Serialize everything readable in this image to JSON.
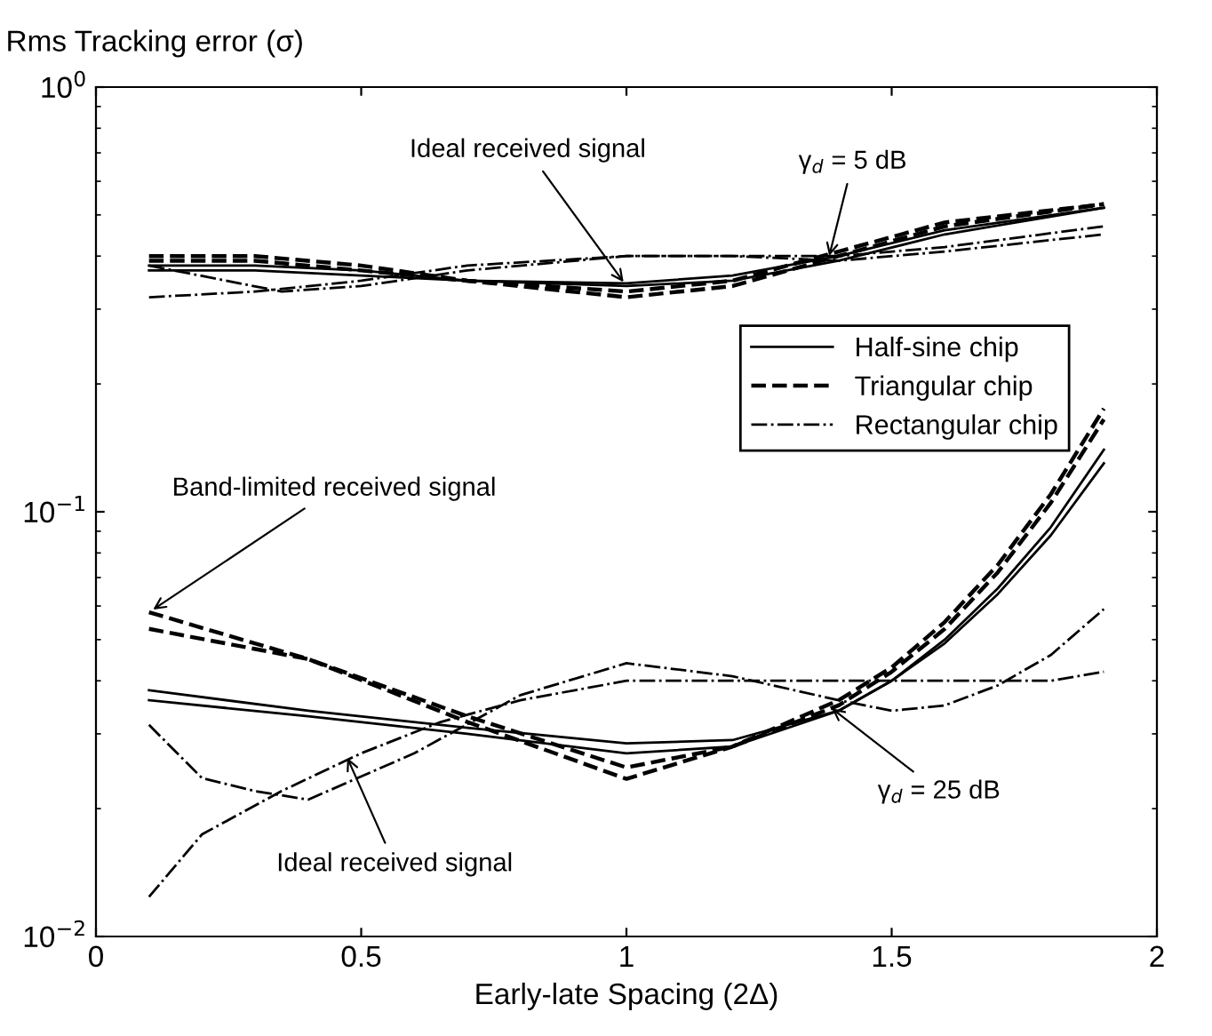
{
  "chart_data": {
    "type": "line",
    "xlabel": "Early-late Spacing (2Δ)",
    "ylabel": "Rms Tracking error (σ)",
    "xlim": [
      0,
      2
    ],
    "xticks": [
      0,
      0.5,
      1,
      1.5,
      2
    ],
    "ylim": [
      0.01,
      1
    ],
    "yticks": [
      {
        "value": 0.01,
        "label": "10$^{−2}$"
      },
      {
        "value": 0.1,
        "label": "10$^{−1}$"
      },
      {
        "value": 1,
        "label": "10$^{0}$"
      }
    ],
    "log": "y",
    "grid": false,
    "legend": "right",
    "marker": "none",
    "series": [
      {
        "name": "Half-sine chip",
        "color": "#000000",
        "line_style": "solid",
        "x": [
          0.1,
          0.3,
          0.5,
          0.7,
          1.0,
          1.2,
          1.4,
          1.6,
          1.9
        ],
        "values": [
          0.37,
          0.37,
          0.36,
          0.35,
          0.34,
          0.35,
          0.39,
          0.45,
          0.52
        ]
      },
      {
        "color": "#000000",
        "line_style": "solid",
        "x": [
          0.1,
          0.3,
          0.5,
          0.7,
          1.0,
          1.2,
          1.4,
          1.6,
          1.9
        ],
        "values": [
          0.38,
          0.38,
          0.37,
          0.35,
          0.345,
          0.36,
          0.4,
          0.46,
          0.52
        ]
      },
      {
        "name": "Triangular chip",
        "color": "#000000",
        "line_style": "dashed",
        "x": [
          0.1,
          0.3,
          0.5,
          0.7,
          1.0,
          1.2,
          1.4,
          1.6,
          1.9
        ],
        "values": [
          0.4,
          0.4,
          0.38,
          0.35,
          0.32,
          0.34,
          0.4,
          0.47,
          0.53
        ]
      },
      {
        "color": "#000000",
        "line_style": "dashed",
        "x": [
          0.1,
          0.3,
          0.5,
          0.7,
          1.0,
          1.2,
          1.4,
          1.6,
          1.9
        ],
        "values": [
          0.39,
          0.39,
          0.37,
          0.35,
          0.33,
          0.35,
          0.41,
          0.48,
          0.53
        ]
      },
      {
        "name": "Rectangular chip",
        "color": "#000000",
        "line_style": "dashdot",
        "x": [
          0.1,
          0.3,
          0.5,
          0.7,
          1.0,
          1.2,
          1.4,
          1.6,
          1.9
        ],
        "values": [
          0.32,
          0.33,
          0.35,
          0.38,
          0.4,
          0.4,
          0.4,
          0.42,
          0.47
        ]
      },
      {
        "color": "#000000",
        "line_style": "dashdot",
        "x": [
          0.1,
          0.35,
          0.5,
          0.7,
          1.0,
          1.2,
          1.4,
          1.6,
          1.9
        ],
        "values": [
          0.38,
          0.33,
          0.34,
          0.37,
          0.4,
          0.4,
          0.39,
          0.41,
          0.45
        ]
      },
      {
        "color": "#000000",
        "line_style": "dashed",
        "x": [
          0.1,
          0.4,
          0.7,
          1.0,
          1.2,
          1.4,
          1.5,
          1.6,
          1.7,
          1.8,
          1.9
        ],
        "values": [
          0.058,
          0.045,
          0.032,
          0.0235,
          0.028,
          0.036,
          0.043,
          0.055,
          0.075,
          0.11,
          0.175
        ]
      },
      {
        "color": "#000000",
        "line_style": "dashed",
        "x": [
          0.1,
          0.4,
          0.7,
          1.0,
          1.2,
          1.4,
          1.5,
          1.6,
          1.7,
          1.8,
          1.9
        ],
        "values": [
          0.053,
          0.045,
          0.033,
          0.025,
          0.028,
          0.035,
          0.042,
          0.053,
          0.072,
          0.105,
          0.165
        ]
      },
      {
        "color": "#000000",
        "line_style": "solid",
        "x": [
          0.1,
          0.4,
          0.7,
          1.0,
          1.2,
          1.4,
          1.5,
          1.6,
          1.7,
          1.8,
          1.9
        ],
        "values": [
          0.038,
          0.034,
          0.031,
          0.0285,
          0.029,
          0.034,
          0.04,
          0.05,
          0.066,
          0.092,
          0.14
        ]
      },
      {
        "color": "#000000",
        "line_style": "solid",
        "x": [
          0.1,
          0.4,
          0.7,
          1.0,
          1.2,
          1.4,
          1.5,
          1.6,
          1.7,
          1.8,
          1.9
        ],
        "values": [
          0.036,
          0.033,
          0.03,
          0.027,
          0.028,
          0.034,
          0.04,
          0.049,
          0.064,
          0.088,
          0.13
        ]
      },
      {
        "color": "#000000",
        "line_style": "dashdot",
        "x": [
          0.1,
          0.2,
          0.35,
          0.5,
          0.65,
          0.8,
          1.0,
          1.2,
          1.4,
          1.6,
          1.8,
          1.9
        ],
        "values": [
          0.0124,
          0.0174,
          0.022,
          0.027,
          0.032,
          0.036,
          0.04,
          0.04,
          0.04,
          0.04,
          0.04,
          0.042
        ]
      },
      {
        "color": "#000000",
        "line_style": "dashdot",
        "x": [
          0.1,
          0.2,
          0.3,
          0.4,
          0.6,
          0.8,
          1.0,
          1.2,
          1.4,
          1.5,
          1.6,
          1.7,
          1.8,
          1.9
        ],
        "values": [
          0.0315,
          0.0236,
          0.022,
          0.021,
          0.027,
          0.037,
          0.044,
          0.041,
          0.036,
          0.034,
          0.035,
          0.039,
          0.046,
          0.059
        ]
      }
    ],
    "annotations": [
      {
        "text": "Ideal received signal",
        "x": 1.0,
        "y": 0.34
      },
      {
        "text": "γ$_{d}$ = 5 dB",
        "x": 1.38,
        "y": 0.39
      },
      {
        "text": "Band-limited received signal",
        "x": 0.1,
        "y": 0.058
      },
      {
        "text": "Ideal received signal",
        "x": 0.47,
        "y": 0.027
      },
      {
        "text": "γ$_{d}$ = 25 dB",
        "x": 1.38,
        "y": 0.035
      }
    ]
  }
}
